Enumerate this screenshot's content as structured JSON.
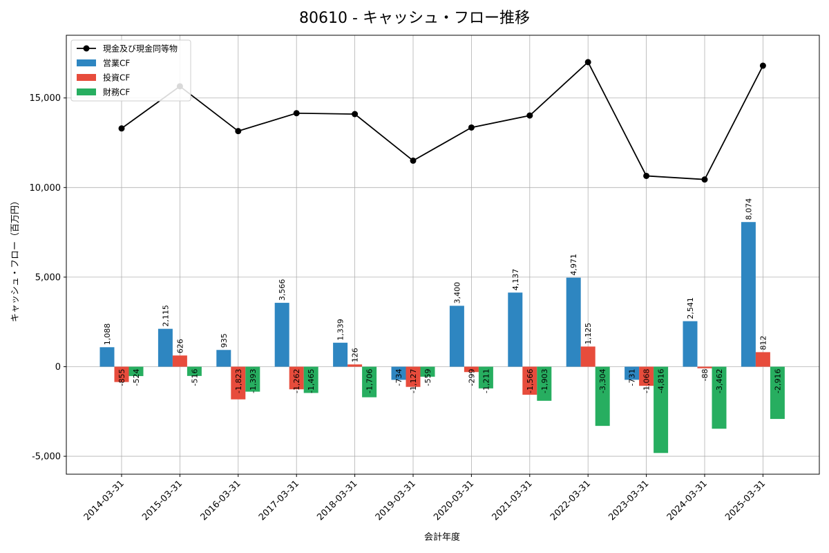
{
  "chart_data": {
    "type": "bar+line",
    "title": "80610 - キャッシュ・フロー推移",
    "xlabel": "会計年度",
    "ylabel": "キャッシュ・フロー（百万円）",
    "ylim": [
      -6000,
      18500
    ],
    "yticks": [
      -5000,
      0,
      5000,
      10000,
      15000
    ],
    "ytick_labels": [
      "-5,000",
      "0",
      "5,000",
      "10,000",
      "15,000"
    ],
    "grid": true,
    "legend_position": "top-left",
    "categories": [
      "2014-03-31",
      "2015-03-31",
      "2016-03-31",
      "2017-03-31",
      "2018-03-31",
      "2019-03-31",
      "2020-03-31",
      "2021-03-31",
      "2022-03-31",
      "2023-03-31",
      "2024-03-31",
      "2025-03-31"
    ],
    "series": [
      {
        "name": "営業CF",
        "type": "bar",
        "color": "#2e86c1",
        "values": [
          1088,
          2115,
          935,
          3566,
          1339,
          -734,
          3400,
          4137,
          4971,
          -731,
          2541,
          8074
        ],
        "labels": [
          "1,088",
          "2,115",
          "935",
          "3,566",
          "1,339",
          "-734",
          "3,400",
          "4,137",
          "4,971",
          "-731",
          "2,541",
          "8,074"
        ]
      },
      {
        "name": "投資CF",
        "type": "bar",
        "color": "#e74c3c",
        "values": [
          -855,
          626,
          -1823,
          -1262,
          126,
          -1127,
          -299,
          -1566,
          1125,
          -1068,
          -88,
          812
        ],
        "labels": [
          "-855",
          "626",
          "-1,823",
          "-1,262",
          "126",
          "-1,127",
          "-299",
          "-1,566",
          "1,125",
          "-1,068",
          "-88",
          "812"
        ]
      },
      {
        "name": "財務CF",
        "type": "bar",
        "color": "#27ae60",
        "values": [
          -524,
          -516,
          -1393,
          -1465,
          -1706,
          -559,
          -1211,
          -1903,
          -3304,
          -4816,
          -3462,
          -2916
        ],
        "labels": [
          "-524",
          "-516",
          "-1,393",
          "-1,465",
          "-1,706",
          "-559",
          "-1,211",
          "-1,903",
          "-3,304",
          "-4,816",
          "-3,462",
          "-2,916"
        ]
      },
      {
        "name": "現金及び現金同等物",
        "type": "line",
        "color": "#000000",
        "values": [
          13300,
          15650,
          13150,
          14150,
          14100,
          11500,
          13350,
          14020,
          17000,
          10650,
          10450,
          16800
        ]
      }
    ]
  }
}
